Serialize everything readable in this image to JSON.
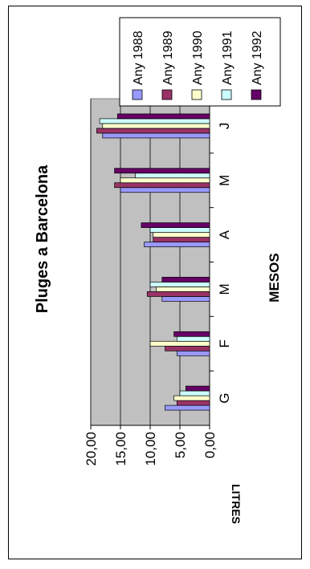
{
  "chart_data": {
    "type": "bar",
    "title": "Pluges a  Barcelona",
    "xlabel": "MESOS",
    "ylabel": "LITRES",
    "categories": [
      "G",
      "F",
      "M",
      "A",
      "M",
      "J"
    ],
    "ylim": [
      0,
      20
    ],
    "yticks": [
      0,
      5,
      10,
      15,
      20
    ],
    "ytick_labels": [
      "0,00",
      "5,00",
      "10,00",
      "15,00",
      "20,00"
    ],
    "grid": true,
    "legend_position": "right",
    "plot_background": "#c0c0c0",
    "series": [
      {
        "name": "Any 1988",
        "color": "#9999ff",
        "values": [
          7.5,
          5.5,
          8.0,
          11.0,
          15.0,
          18.0
        ]
      },
      {
        "name": "Any 1989",
        "color": "#993366",
        "values": [
          5.5,
          7.5,
          10.5,
          9.5,
          16.0,
          19.0
        ]
      },
      {
        "name": "Any 1990",
        "color": "#ffffcc",
        "values": [
          6.0,
          10.0,
          9.0,
          9.5,
          15.0,
          18.0
        ]
      },
      {
        "name": "Any 1991",
        "color": "#ccffff",
        "values": [
          5.0,
          5.5,
          10.0,
          10.0,
          12.5,
          18.5
        ]
      },
      {
        "name": "Any 1992",
        "color": "#660066",
        "values": [
          4.0,
          6.0,
          8.0,
          11.5,
          16.0,
          15.5
        ]
      }
    ]
  }
}
